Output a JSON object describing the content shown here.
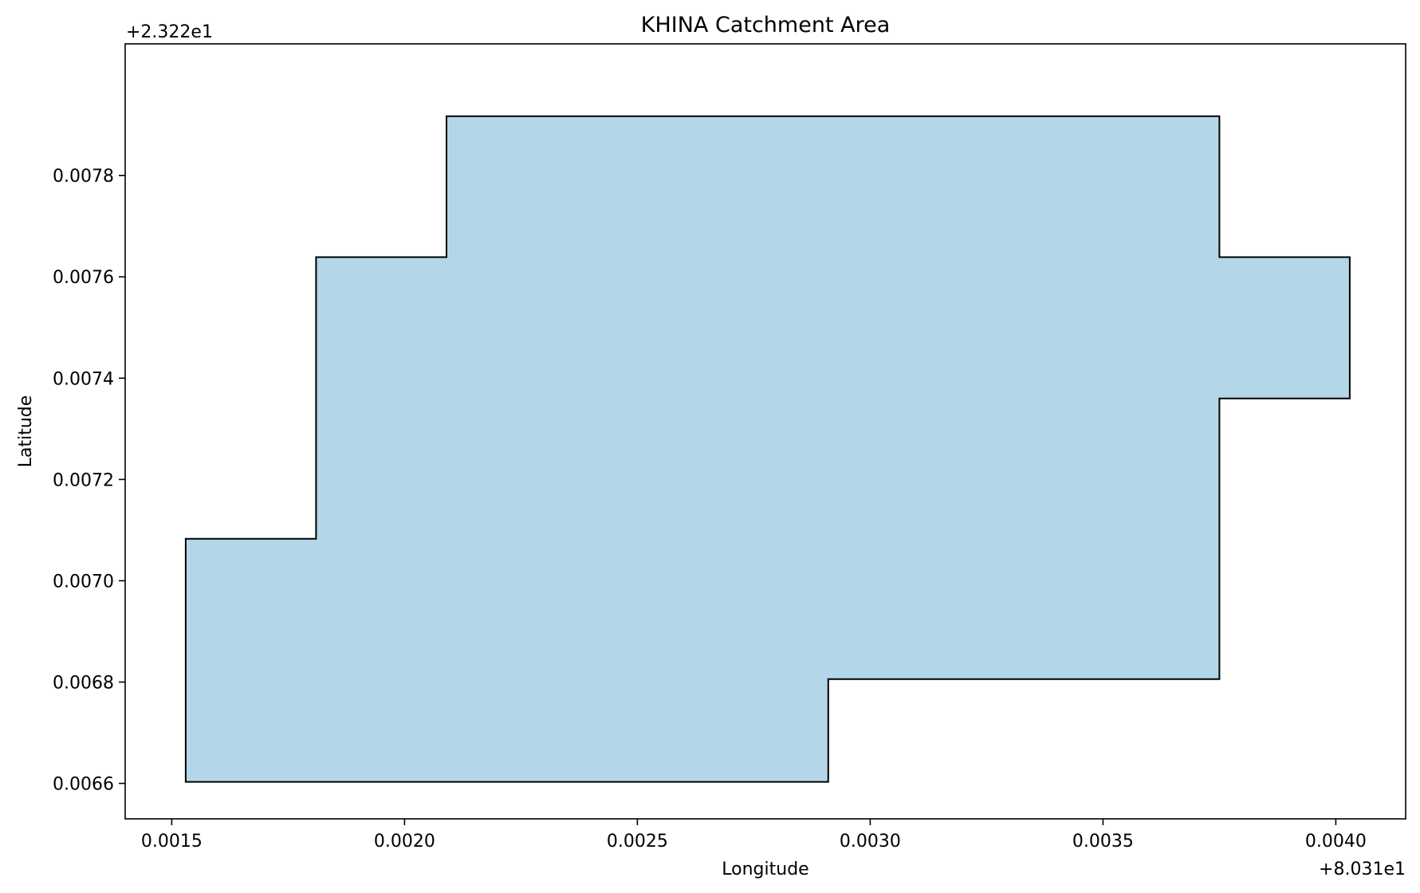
{
  "chart_data": {
    "type": "area",
    "title": "KHINA Catchment Area",
    "xlabel": "Longitude",
    "ylabel": "Latitude",
    "x_offset_label": "+8.031e1",
    "y_offset_label": "+2.322e1",
    "xlim": [
      0.0014,
      0.00415
    ],
    "ylim": [
      0.00653,
      0.00806
    ],
    "x_ticks": [
      0.0015,
      0.002,
      0.0025,
      0.003,
      0.0035,
      0.004
    ],
    "x_tick_labels": [
      "0.0015",
      "0.0020",
      "0.0025",
      "0.0030",
      "0.0035",
      "0.0040"
    ],
    "y_ticks": [
      0.0066,
      0.0068,
      0.007,
      0.0072,
      0.0074,
      0.0076,
      0.0078
    ],
    "y_tick_labels": [
      "0.0066",
      "0.0068",
      "0.0070",
      "0.0072",
      "0.0074",
      "0.0076",
      "0.0078"
    ],
    "grid": false,
    "polygon": [
      {
        "x": 0.00153,
        "y": 0.006603
      },
      {
        "x": 0.00291,
        "y": 0.006603
      },
      {
        "x": 0.00291,
        "y": 0.006806
      },
      {
        "x": 0.00375,
        "y": 0.006806
      },
      {
        "x": 0.00375,
        "y": 0.00736
      },
      {
        "x": 0.00403,
        "y": 0.00736
      },
      {
        "x": 0.00403,
        "y": 0.007639
      },
      {
        "x": 0.00375,
        "y": 0.007639
      },
      {
        "x": 0.00375,
        "y": 0.007917
      },
      {
        "x": 0.00209,
        "y": 0.007917
      },
      {
        "x": 0.00209,
        "y": 0.007639
      },
      {
        "x": 0.00181,
        "y": 0.007639
      },
      {
        "x": 0.00181,
        "y": 0.007083
      },
      {
        "x": 0.00153,
        "y": 0.007083
      }
    ],
    "colors": {
      "fill": "#b3d6e8",
      "edge": "#000000",
      "axes": "#000000",
      "background": "#ffffff"
    }
  }
}
